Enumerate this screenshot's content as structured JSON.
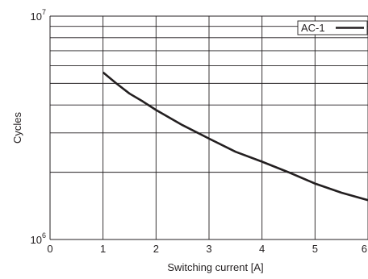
{
  "chart_data": {
    "type": "line",
    "xlabel": "Switching current [A]",
    "ylabel": "Cycles",
    "x_ticks": [
      0,
      1,
      2,
      3,
      4,
      5,
      6
    ],
    "x_tick_labels": [
      "0",
      "1",
      "2",
      "3",
      "4",
      "5",
      "6"
    ],
    "xlim": [
      0,
      6
    ],
    "ylim": [
      1000000,
      10000000
    ],
    "y_scale": "log",
    "y_tick_labels": [
      {
        "base": "10",
        "exp": "6",
        "value": 1000000
      },
      {
        "base": "10",
        "exp": "7",
        "value": 10000000
      }
    ],
    "grid": true,
    "legend_position": "top-right",
    "series": [
      {
        "name": "AC-1",
        "x": [
          1.0,
          1.25,
          1.5,
          1.75,
          2.0,
          2.5,
          3.0,
          3.5,
          4.0,
          4.5,
          5.0,
          5.5,
          6.0
        ],
        "y": [
          5600000,
          5000000,
          4500000,
          4150000,
          3800000,
          3250000,
          2830000,
          2470000,
          2230000,
          2000000,
          1780000,
          1620000,
          1500000
        ]
      }
    ]
  }
}
